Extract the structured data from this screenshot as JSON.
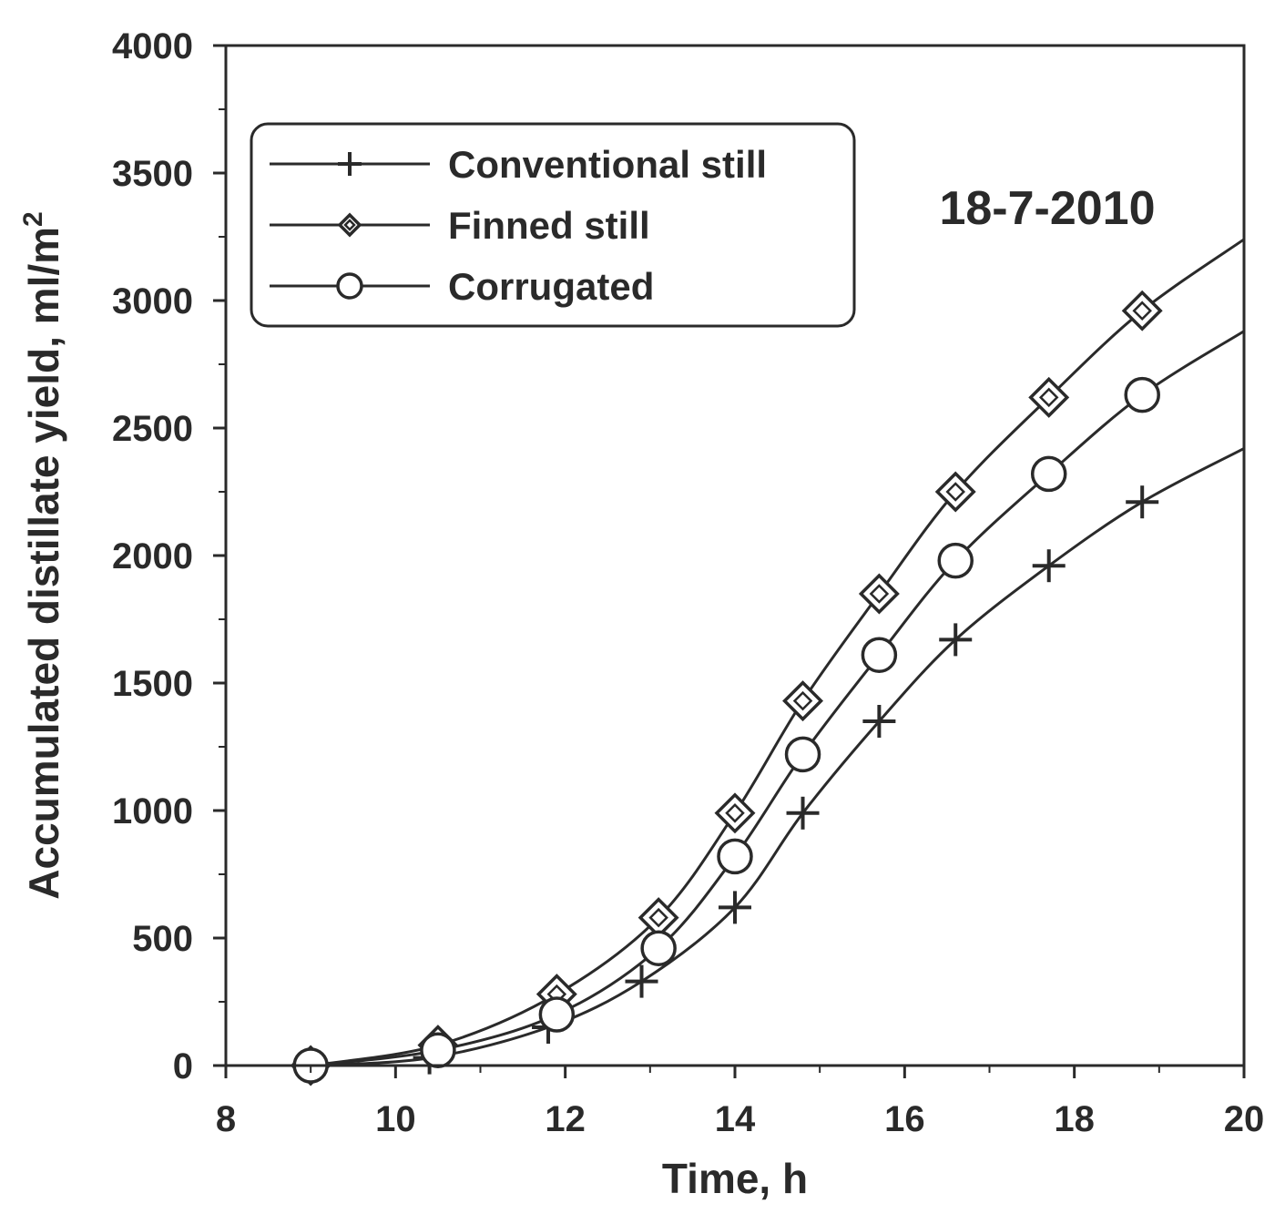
{
  "chart_data": {
    "type": "line",
    "annotation": "18-7-2010",
    "xlabel": "Time, h",
    "ylabel_main": "Accumulated distillate yield, ml/m",
    "ylabel_sup": "2",
    "xlim": [
      8,
      20
    ],
    "ylim": [
      0,
      4000
    ],
    "xticks": [
      8,
      10,
      12,
      14,
      16,
      18,
      20
    ],
    "yticks": [
      0,
      500,
      1000,
      1500,
      2000,
      2500,
      3000,
      3500,
      4000
    ],
    "xtick_labels": [
      "8",
      "10",
      "12",
      "14",
      "16",
      "18",
      "20"
    ],
    "ytick_labels": [
      "0",
      "500",
      "1000",
      "1500",
      "2000",
      "2500",
      "3000",
      "3500",
      "4000"
    ],
    "grid": false,
    "legend_position": "top-left",
    "series": [
      {
        "name": "Conventional still",
        "marker": "plus",
        "x": [
          9,
          10.4,
          11.8,
          12.9,
          14,
          14.8,
          15.7,
          16.6,
          17.7,
          18.8
        ],
        "y": [
          0,
          30,
          150,
          330,
          620,
          990,
          1350,
          1670,
          1960,
          2210
        ],
        "end": [
          20,
          2420
        ]
      },
      {
        "name": "Finned still",
        "marker": "diamond",
        "x": [
          9,
          10.5,
          11.9,
          13.1,
          14,
          14.8,
          15.7,
          16.6,
          17.7,
          18.8
        ],
        "y": [
          0,
          80,
          280,
          580,
          990,
          1430,
          1850,
          2250,
          2620,
          2960
        ],
        "end": [
          20,
          3240
        ]
      },
      {
        "name": "Corrugated",
        "marker": "circle",
        "x": [
          9,
          10.5,
          11.9,
          13.1,
          14,
          14.8,
          15.7,
          16.6,
          17.7,
          18.8
        ],
        "y": [
          0,
          60,
          200,
          460,
          820,
          1220,
          1610,
          1980,
          2320,
          2630
        ],
        "end": [
          20,
          2880
        ]
      }
    ]
  }
}
